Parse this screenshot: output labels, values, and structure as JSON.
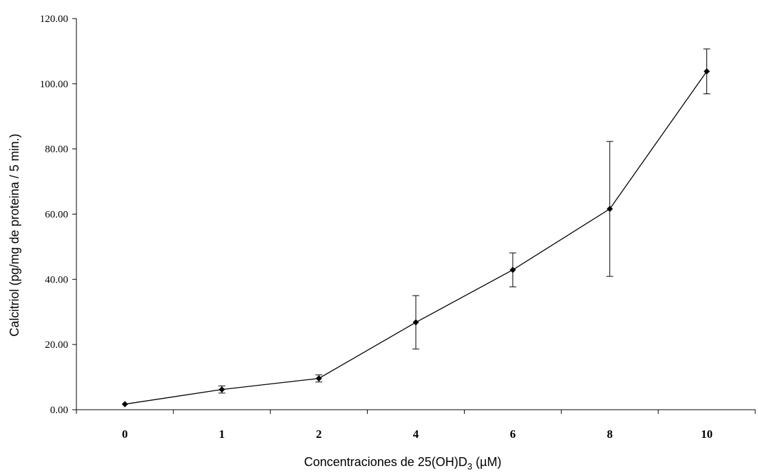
{
  "chart_data": {
    "type": "line",
    "categories": [
      "0",
      "1",
      "2",
      "4",
      "6",
      "8",
      "10"
    ],
    "series": [
      {
        "values": [
          1.7,
          6.2,
          9.6,
          26.8,
          42.9,
          61.6,
          103.8
        ],
        "error": [
          0,
          1.1,
          1.1,
          8.2,
          5.2,
          20.7,
          6.9
        ]
      }
    ],
    "ylim": [
      0,
      120
    ],
    "yticks": [
      "0.00",
      "20.00",
      "40.00",
      "60.00",
      "80.00",
      "100.00",
      "120.00"
    ],
    "xlabel": "Concentraciones de 25(OH)D",
    "xlabel_sub": "3",
    "xlabel_end": " (µM)",
    "ylabel": "Calcitriol (pg/mg de proteina / 5 min.)",
    "grid": false,
    "marker": "diamond",
    "line_color": "#000000"
  }
}
